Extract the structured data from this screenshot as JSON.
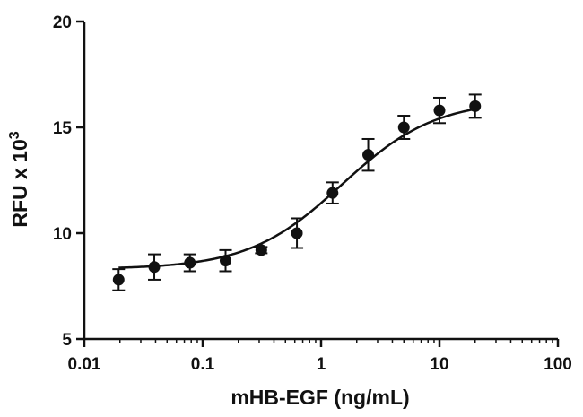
{
  "chart_data": {
    "type": "scatter",
    "title": "",
    "xlabel": "mHB-EGF (ng/mL)",
    "ylabel": "RFU x 10",
    "ylabel_exponent": "3",
    "xscale": "log",
    "xlim": [
      0.01,
      100
    ],
    "ylim": [
      5,
      20
    ],
    "x_ticks": [
      {
        "value": 0.01,
        "label": "0.01"
      },
      {
        "value": 0.1,
        "label": "0.1"
      },
      {
        "value": 1,
        "label": "1"
      },
      {
        "value": 10,
        "label": "10"
      },
      {
        "value": 100,
        "label": "100"
      }
    ],
    "y_ticks": [
      {
        "value": 5,
        "label": "5"
      },
      {
        "value": 10,
        "label": "10"
      },
      {
        "value": 15,
        "label": "15"
      },
      {
        "value": 20,
        "label": "20"
      }
    ],
    "grid": false,
    "legend": "none",
    "color": "#111111",
    "points": [
      {
        "x": 0.0195,
        "y": 7.8,
        "err": 0.5
      },
      {
        "x": 0.039,
        "y": 8.4,
        "err": 0.6
      },
      {
        "x": 0.078,
        "y": 8.6,
        "err": 0.4
      },
      {
        "x": 0.156,
        "y": 8.7,
        "err": 0.5
      },
      {
        "x": 0.3125,
        "y": 9.2,
        "err": 0.15
      },
      {
        "x": 0.625,
        "y": 10.0,
        "err": 0.7
      },
      {
        "x": 1.25,
        "y": 11.9,
        "err": 0.5
      },
      {
        "x": 2.5,
        "y": 13.7,
        "err": 0.75
      },
      {
        "x": 5,
        "y": 15.0,
        "err": 0.55
      },
      {
        "x": 10,
        "y": 15.8,
        "err": 0.6
      },
      {
        "x": 20,
        "y": 16.0,
        "err": 0.55
      }
    ],
    "fit_curve": {
      "type": "four-parameter-logistic",
      "bottom": 8.3,
      "top": 16.3,
      "ec50": 1.5,
      "hill": 1.1
    }
  }
}
